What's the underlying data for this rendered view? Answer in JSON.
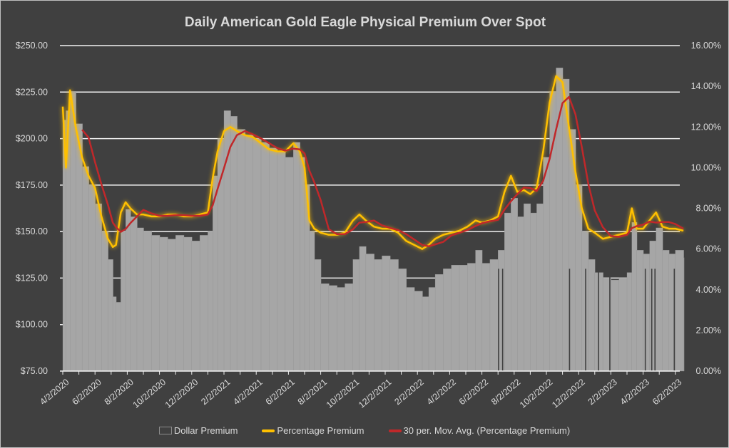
{
  "chart_data": {
    "type": "bar+line",
    "title": "Daily American Gold Eagle Physical Premium Over Spot",
    "x_unit": "months since 4/2/2020",
    "x_tick_labels": [
      "4/2/2020",
      "6/2/2020",
      "8/2/2020",
      "10/2/2020",
      "12/2/2020",
      "2/2/2021",
      "4/2/2021",
      "6/2/2021",
      "8/2/2021",
      "10/2/2021",
      "12/2/2021",
      "2/2/2022",
      "4/2/2022",
      "6/2/2022",
      "8/2/2022",
      "10/2/2022",
      "12/2/2022",
      "2/2/2023",
      "4/2/2023",
      "6/2/2023"
    ],
    "y_left": {
      "label": "",
      "ylim": [
        75,
        250
      ],
      "ticks": [
        "$75.00",
        "$100.00",
        "$125.00",
        "$150.00",
        "$175.00",
        "$200.00",
        "$225.00",
        "$250.00"
      ],
      "tick_values": [
        75,
        100,
        125,
        150,
        175,
        200,
        225,
        250
      ]
    },
    "y_right": {
      "label": "",
      "ylim": [
        0,
        16
      ],
      "ticks": [
        "0.00%",
        "2.00%",
        "4.00%",
        "6.00%",
        "8.00%",
        "10.00%",
        "12.00%",
        "14.00%",
        "16.00%"
      ],
      "tick_values": [
        0,
        2,
        4,
        6,
        8,
        10,
        12,
        14,
        16
      ]
    },
    "x": [
      0,
      0.2,
      0.45,
      0.8,
      1.2,
      1.6,
      2.0,
      2.4,
      2.8,
      3.1,
      3.3,
      3.6,
      3.9,
      4.2,
      4.6,
      5.0,
      5.5,
      6.0,
      6.5,
      7.0,
      7.5,
      8.0,
      8.5,
      9.0,
      9.3,
      9.6,
      10.0,
      10.4,
      10.8,
      11.3,
      11.8,
      12.3,
      12.8,
      13.3,
      13.8,
      14.3,
      14.7,
      15.0,
      15.3,
      15.6,
      16.0,
      16.5,
      17.0,
      17.5,
      18.0,
      18.4,
      18.8,
      19.3,
      19.8,
      20.3,
      20.8,
      21.3,
      21.8,
      22.3,
      22.7,
      23.1,
      23.6,
      24.1,
      24.6,
      25.1,
      25.6,
      26.0,
      26.5,
      27.0,
      27.4,
      27.8,
      28.2,
      28.6,
      29.0,
      29.4,
      29.8,
      30.2,
      30.6,
      31.0,
      31.4,
      31.8,
      32.2,
      32.6,
      33.0,
      33.5,
      34.0,
      34.5,
      35.0,
      35.3,
      35.6,
      36.0,
      36.4,
      36.8,
      37.2,
      37.6,
      38.0,
      38.5
    ],
    "series": [
      {
        "name": "Dollar Premium",
        "type": "bar",
        "axis": "left",
        "color": "#a6a6a6",
        "values": [
          210,
          215,
          225,
          208,
          185,
          175,
          165,
          150,
          135,
          115,
          112,
          150,
          162,
          158,
          152,
          150,
          148,
          147,
          146,
          148,
          147,
          145,
          148,
          150,
          180,
          200,
          215,
          212,
          205,
          202,
          200,
          198,
          195,
          193,
          190,
          198,
          190,
          175,
          150,
          135,
          122,
          121,
          120,
          122,
          135,
          142,
          138,
          135,
          137,
          135,
          130,
          120,
          118,
          115,
          120,
          127,
          130,
          132,
          132,
          133,
          140,
          133,
          135,
          140,
          160,
          168,
          158,
          165,
          160,
          165,
          190,
          225,
          238,
          232,
          205,
          175,
          150,
          135,
          128,
          125,
          124,
          125,
          128,
          155,
          140,
          138,
          145,
          152,
          140,
          138,
          140,
          136
        ]
      },
      {
        "name": "Percentage Premium",
        "type": "line",
        "axis": "right",
        "color": "#ffc000",
        "values": [
          13.0,
          10.0,
          13.8,
          12.0,
          10.5,
          9.6,
          9.0,
          7.6,
          6.5,
          6.1,
          6.2,
          7.8,
          8.3,
          8.0,
          7.7,
          7.7,
          7.6,
          7.6,
          7.7,
          7.7,
          7.6,
          7.6,
          7.7,
          7.8,
          9.5,
          10.8,
          11.8,
          12.0,
          11.8,
          11.6,
          11.5,
          11.2,
          10.9,
          10.8,
          10.8,
          11.2,
          10.8,
          10.0,
          7.4,
          7.0,
          6.8,
          6.7,
          6.7,
          6.8,
          7.4,
          7.7,
          7.4,
          7.1,
          7.0,
          7.0,
          6.8,
          6.4,
          6.2,
          6.0,
          6.2,
          6.5,
          6.7,
          6.8,
          6.9,
          7.1,
          7.4,
          7.3,
          7.4,
          7.6,
          8.8,
          9.6,
          8.8,
          8.9,
          8.7,
          9.0,
          10.8,
          13.2,
          14.5,
          14.2,
          12.0,
          9.8,
          8.0,
          7.0,
          6.8,
          6.5,
          6.6,
          6.7,
          6.8,
          8.0,
          7.0,
          7.0,
          7.4,
          7.8,
          7.1,
          7.0,
          7.0,
          6.9
        ]
      },
      {
        "name": "30 per. Mov. Avg. (Percentage Premium)",
        "type": "moving-average",
        "axis": "right",
        "color": "#c0282a",
        "window_months": 1.4
      }
    ],
    "zero_days": [
      27.0,
      27.25,
      31.4,
      32.4,
      33.2,
      33.9,
      36.1,
      36.5,
      36.7,
      37.9
    ],
    "x_range": [
      0,
      38.8
    ],
    "grid": true,
    "legend_position": "bottom"
  }
}
